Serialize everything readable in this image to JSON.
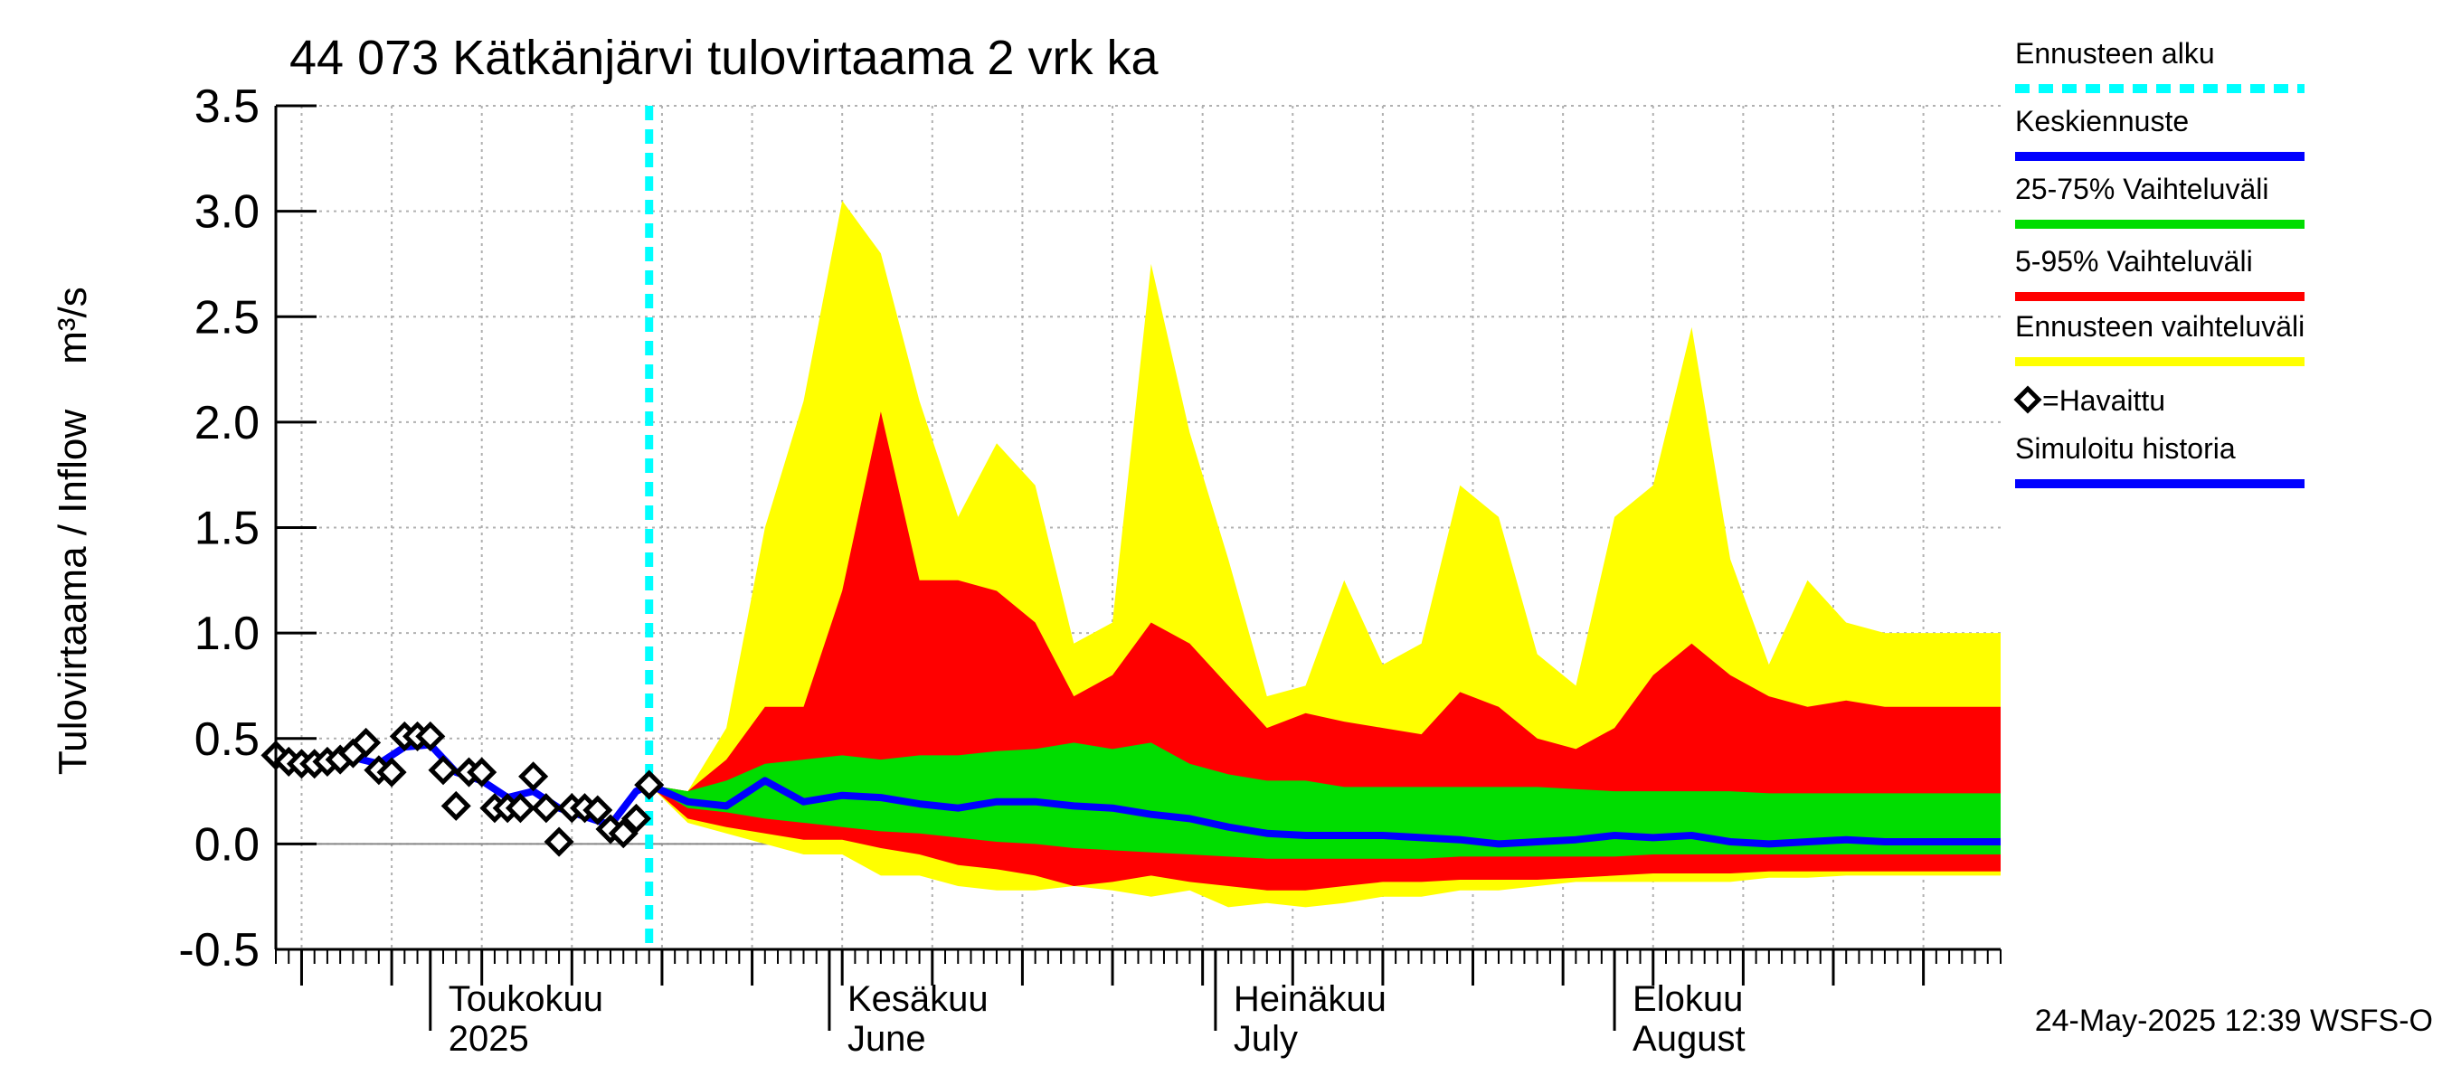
{
  "chart_data": {
    "type": "area",
    "title": "44 073 Kätkänjärvi tulovirtaama 2 vrk ka",
    "ylabel": "Tulovirtaama / Inflow",
    "yunit": "m³/s",
    "ylim": [
      -0.5,
      3.5
    ],
    "yticks": [
      "3.5",
      "3.0",
      "2.5",
      "2.0",
      "1.5",
      "1.0",
      "0.5",
      "0.0",
      "-0.5"
    ],
    "grid": true,
    "legend_position": "right",
    "xrange": [
      "2025-04-19",
      "2025-08-31"
    ],
    "month_labels": [
      {
        "date": "2025-05-01",
        "fi": "Toukokuu",
        "en": "2025"
      },
      {
        "date": "2025-06-01",
        "fi": "Kesäkuu",
        "en": "June"
      },
      {
        "date": "2025-07-01",
        "fi": "Heinäkuu",
        "en": "July"
      },
      {
        "date": "2025-08-01",
        "fi": "Elokuu",
        "en": "August"
      }
    ],
    "forecast_start": "2025-05-18",
    "observed": {
      "name": "=Havaittu",
      "x": [
        "2025-04-19",
        "2025-04-20",
        "2025-04-21",
        "2025-04-22",
        "2025-04-23",
        "2025-04-24",
        "2025-04-25",
        "2025-04-26",
        "2025-04-27",
        "2025-04-28",
        "2025-04-29",
        "2025-04-30",
        "2025-05-01",
        "2025-05-02",
        "2025-05-03",
        "2025-05-04",
        "2025-05-05",
        "2025-05-06",
        "2025-05-07",
        "2025-05-08",
        "2025-05-09",
        "2025-05-10",
        "2025-05-11",
        "2025-05-12",
        "2025-05-13",
        "2025-05-14",
        "2025-05-15",
        "2025-05-16",
        "2025-05-17",
        "2025-05-18"
      ],
      "y": [
        0.42,
        0.39,
        0.38,
        0.38,
        0.39,
        0.4,
        0.43,
        0.48,
        0.35,
        0.34,
        0.51,
        0.51,
        0.51,
        0.35,
        0.18,
        0.34,
        0.34,
        0.17,
        0.17,
        0.17,
        0.32,
        0.17,
        0.01,
        0.17,
        0.17,
        0.16,
        0.07,
        0.05,
        0.12,
        0.28
      ]
    },
    "simulated_history": {
      "name": "Simuloitu historia",
      "x": [
        "2025-04-19",
        "2025-04-21",
        "2025-04-23",
        "2025-04-25",
        "2025-04-27",
        "2025-04-29",
        "2025-05-01",
        "2025-05-03",
        "2025-05-05",
        "2025-05-07",
        "2025-05-09",
        "2025-05-11",
        "2025-05-13",
        "2025-05-15",
        "2025-05-17",
        "2025-05-18"
      ],
      "y": [
        0.42,
        0.39,
        0.39,
        0.41,
        0.38,
        0.46,
        0.47,
        0.34,
        0.3,
        0.22,
        0.25,
        0.17,
        0.13,
        0.09,
        0.25,
        0.28
      ]
    },
    "forecast_dates": [
      "2025-05-18",
      "2025-05-21",
      "2025-05-24",
      "2025-05-27",
      "2025-05-30",
      "2025-06-02",
      "2025-06-05",
      "2025-06-08",
      "2025-06-11",
      "2025-06-14",
      "2025-06-17",
      "2025-06-20",
      "2025-06-23",
      "2025-06-26",
      "2025-06-29",
      "2025-07-02",
      "2025-07-05",
      "2025-07-08",
      "2025-07-11",
      "2025-07-14",
      "2025-07-17",
      "2025-07-20",
      "2025-07-23",
      "2025-07-26",
      "2025-07-29",
      "2025-08-01",
      "2025-08-04",
      "2025-08-07",
      "2025-08-10",
      "2025-08-13",
      "2025-08-16",
      "2025-08-19",
      "2025-08-22",
      "2025-08-25",
      "2025-08-28",
      "2025-08-31"
    ],
    "series": [
      {
        "name": "Ennusteen vaihteluväli",
        "color": "#ffff00",
        "upper": [
          0.28,
          0.25,
          0.55,
          1.5,
          2.1,
          3.05,
          2.8,
          2.1,
          1.55,
          1.9,
          1.7,
          0.95,
          1.05,
          2.75,
          1.95,
          1.35,
          0.7,
          0.75,
          1.25,
          0.85,
          0.95,
          1.7,
          1.55,
          0.9,
          0.75,
          1.55,
          1.7,
          2.45,
          1.35,
          0.85,
          1.25,
          1.05,
          1.0,
          1.0,
          1.0,
          1.0
        ],
        "lower": [
          0.28,
          0.1,
          0.05,
          0.0,
          -0.05,
          -0.05,
          -0.15,
          -0.15,
          -0.2,
          -0.22,
          -0.22,
          -0.2,
          -0.22,
          -0.25,
          -0.22,
          -0.3,
          -0.28,
          -0.3,
          -0.28,
          -0.25,
          -0.25,
          -0.22,
          -0.22,
          -0.2,
          -0.18,
          -0.18,
          -0.18,
          -0.18,
          -0.18,
          -0.16,
          -0.16,
          -0.15,
          -0.15,
          -0.15,
          -0.15,
          -0.15
        ]
      },
      {
        "name": "5-95% Vaihteluväli",
        "color": "#ff0000",
        "upper": [
          0.28,
          0.25,
          0.4,
          0.65,
          0.65,
          1.2,
          2.05,
          1.25,
          1.25,
          1.2,
          1.05,
          0.7,
          0.8,
          1.05,
          0.95,
          0.75,
          0.55,
          0.62,
          0.58,
          0.55,
          0.52,
          0.72,
          0.65,
          0.5,
          0.45,
          0.55,
          0.8,
          0.95,
          0.8,
          0.7,
          0.65,
          0.68,
          0.65,
          0.65,
          0.65,
          0.65
        ],
        "lower": [
          0.28,
          0.12,
          0.08,
          0.05,
          0.02,
          0.02,
          -0.02,
          -0.05,
          -0.1,
          -0.12,
          -0.15,
          -0.2,
          -0.18,
          -0.15,
          -0.18,
          -0.2,
          -0.22,
          -0.22,
          -0.2,
          -0.18,
          -0.18,
          -0.17,
          -0.17,
          -0.17,
          -0.16,
          -0.15,
          -0.14,
          -0.14,
          -0.14,
          -0.13,
          -0.13,
          -0.13,
          -0.13,
          -0.13,
          -0.13,
          -0.13
        ]
      },
      {
        "name": "25-75% Vaihteluväli",
        "color": "#00dd00",
        "upper": [
          0.28,
          0.25,
          0.3,
          0.38,
          0.4,
          0.42,
          0.4,
          0.42,
          0.42,
          0.44,
          0.45,
          0.48,
          0.45,
          0.48,
          0.38,
          0.33,
          0.3,
          0.3,
          0.27,
          0.27,
          0.27,
          0.27,
          0.27,
          0.27,
          0.26,
          0.25,
          0.25,
          0.25,
          0.25,
          0.24,
          0.24,
          0.24,
          0.24,
          0.24,
          0.24,
          0.24
        ],
        "lower": [
          0.28,
          0.17,
          0.15,
          0.12,
          0.1,
          0.08,
          0.06,
          0.05,
          0.03,
          0.01,
          0.0,
          -0.02,
          -0.03,
          -0.04,
          -0.05,
          -0.06,
          -0.07,
          -0.07,
          -0.07,
          -0.07,
          -0.07,
          -0.06,
          -0.06,
          -0.06,
          -0.06,
          -0.06,
          -0.05,
          -0.05,
          -0.05,
          -0.05,
          -0.05,
          -0.05,
          -0.05,
          -0.05,
          -0.05,
          -0.05
        ]
      },
      {
        "name": "Keskiennuste",
        "color": "#0000ff",
        "values": [
          0.28,
          0.2,
          0.18,
          0.3,
          0.2,
          0.23,
          0.22,
          0.19,
          0.17,
          0.2,
          0.2,
          0.18,
          0.17,
          0.14,
          0.12,
          0.08,
          0.05,
          0.04,
          0.04,
          0.04,
          0.03,
          0.02,
          0.0,
          0.01,
          0.02,
          0.04,
          0.03,
          0.04,
          0.01,
          0.0,
          0.01,
          0.02,
          0.01,
          0.01,
          0.01,
          0.01
        ]
      }
    ],
    "legend": [
      {
        "label": "Ennusteen alku",
        "color": "#00ffff",
        "style": "dashed"
      },
      {
        "label": "Keskiennuste",
        "color": "#0000ff",
        "style": "solid"
      },
      {
        "label": "25-75% Vaihteluväli",
        "color": "#00dd00",
        "style": "solid"
      },
      {
        "label": "5-95% Vaihteluväli",
        "color": "#ff0000",
        "style": "solid"
      },
      {
        "label": "Ennusteen vaihteluväli",
        "color": "#ffff00",
        "style": "solid"
      },
      {
        "label": "=Havaittu",
        "color": "#000000",
        "style": "marker"
      },
      {
        "label": "Simuloitu historia",
        "color": "#0000ff",
        "style": "solid"
      }
    ]
  },
  "footer": {
    "timestamp": "24-May-2025 12:39 WSFS-O"
  }
}
